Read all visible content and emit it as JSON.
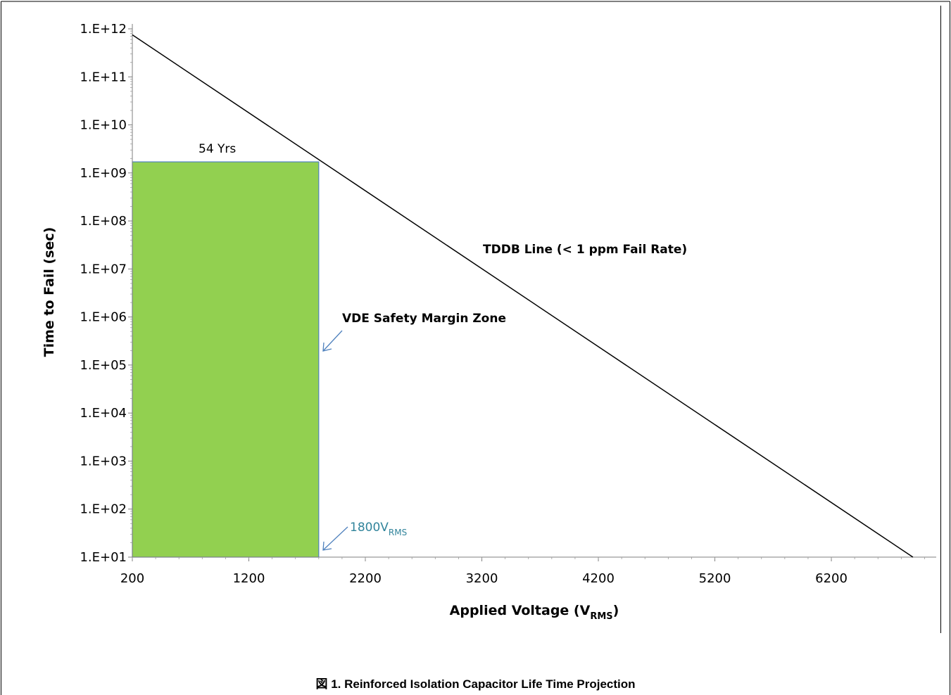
{
  "chart_data": {
    "type": "line",
    "x_axis": {
      "title_main": "Applied Voltage (V",
      "title_sub": "RMS",
      "title_close": ")",
      "min": 200,
      "max": 7100,
      "ticks": [
        200,
        1200,
        2200,
        3200,
        4200,
        5200,
        6200
      ],
      "tick_labels": [
        "200",
        "1200",
        "2200",
        "3200",
        "4200",
        "5200",
        "6200"
      ]
    },
    "y_axis": {
      "title": "Time to Fail (sec)",
      "scale": "log",
      "min": 10,
      "max": 1000000000000.0,
      "ticks": [
        10,
        100,
        1000,
        10000,
        100000,
        1000000,
        10000000,
        100000000,
        1000000000,
        10000000000,
        100000000000,
        1000000000000
      ],
      "tick_labels": [
        "1.E+01",
        "1.E+02",
        "1.E+03",
        "1.E+04",
        "1.E+05",
        "1.E+06",
        "1.E+07",
        "1.E+08",
        "1.E+09",
        "1.E+10",
        "1.E+11",
        "1.E+12"
      ]
    },
    "series": [
      {
        "name": "TDDB Line (< 1 ppm Fail Rate)",
        "color": "#000000",
        "x": [
          200,
          6900
        ],
        "y": [
          750000000000.0,
          10
        ]
      }
    ],
    "zone": {
      "name": "VDE Safety Margin Zone",
      "color": "#92d050",
      "border_color": "#4f81bd",
      "x_start": 200,
      "x_end": 1800,
      "y_bottom": 10,
      "y_top": 1700000000.0,
      "top_label": "54 Yrs"
    },
    "annotations": {
      "tddb_label": "TDDB Line (< 1 ppm Fail Rate)",
      "zone_label": "VDE Safety Margin Zone",
      "voltage_main": "1800V",
      "voltage_sub": "RMS",
      "arrow_color": "#4f81bd"
    },
    "grid": false,
    "legend": "none"
  },
  "caption": "図 1. Reinforced Isolation Capacitor Life Time Projection"
}
